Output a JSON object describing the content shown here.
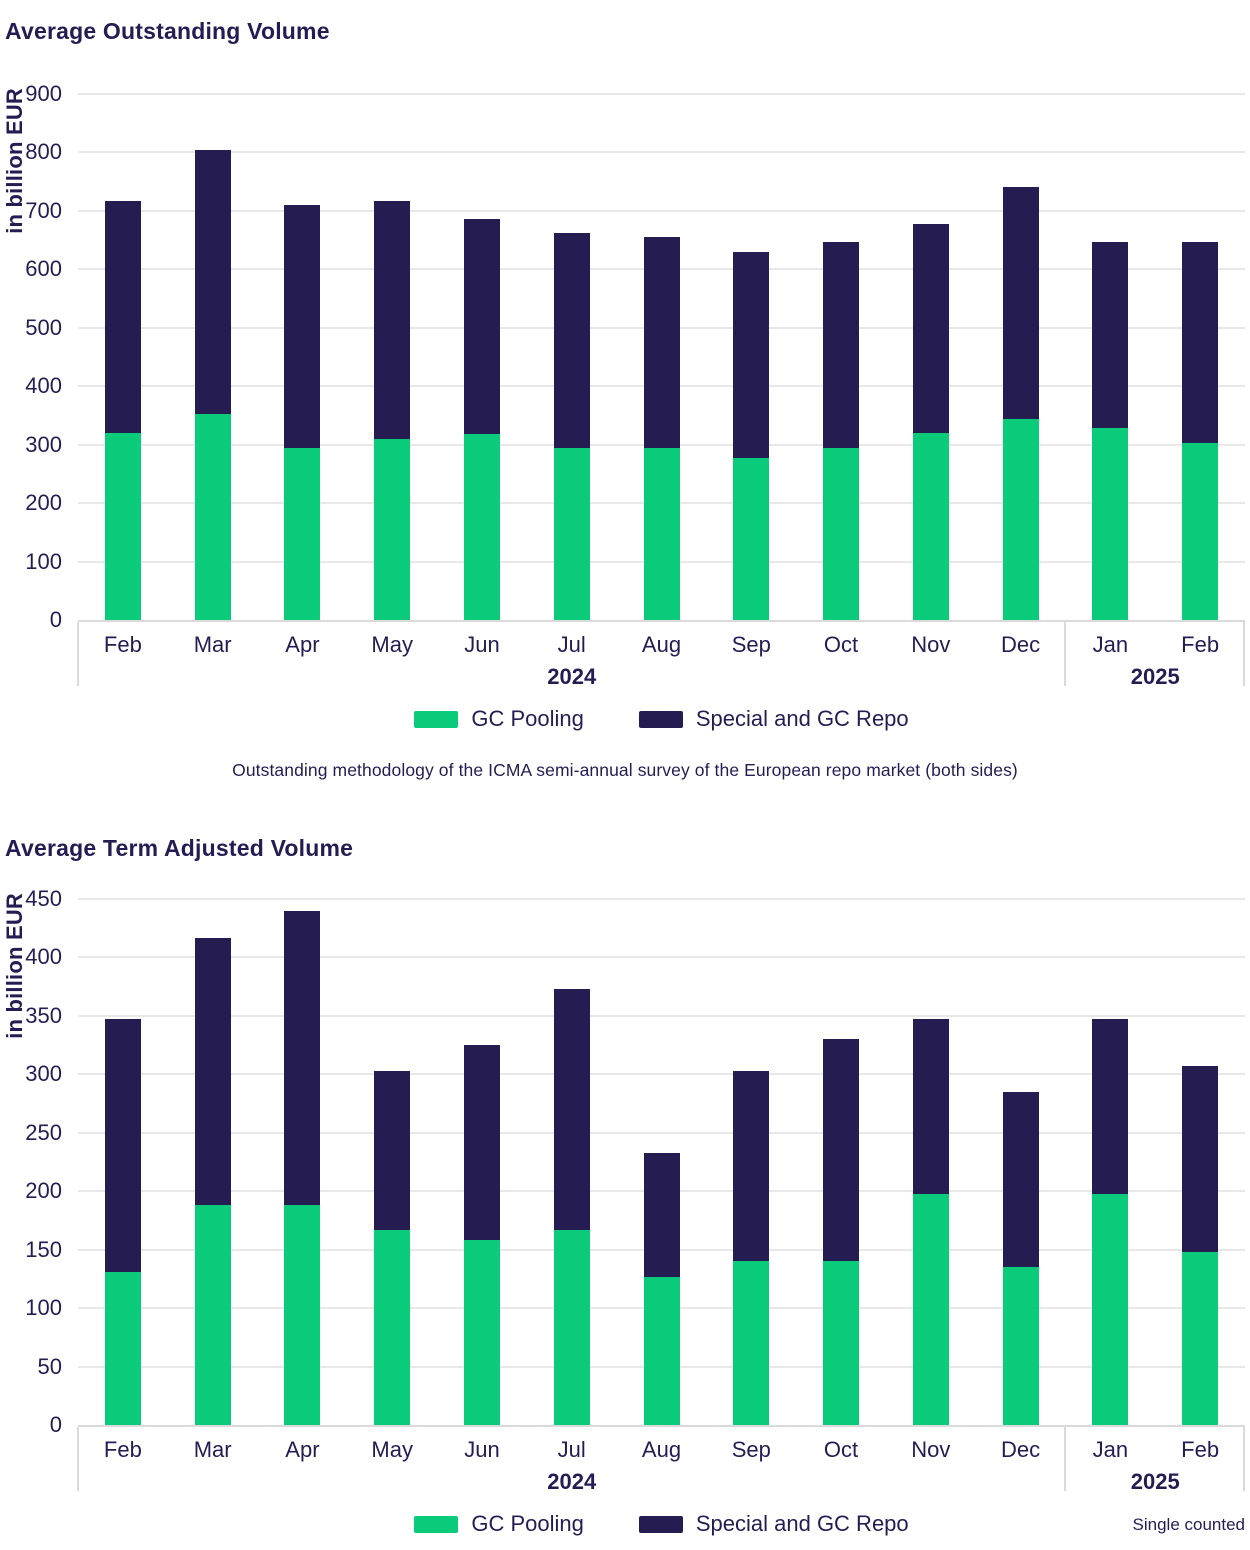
{
  "colors": {
    "gc_pooling_green": "#0acb7a",
    "special_repo_navy": "#251d52",
    "text_navy": "#241d53",
    "gridline_gray": "#e8e8e8",
    "axis_gray": "#dadada"
  },
  "chart_data": [
    {
      "type": "bar",
      "stacked": true,
      "title": "Average Outstanding Volume",
      "ylabel": "in billion EUR",
      "ylim": [
        0,
        900
      ],
      "ytick_step": 100,
      "grid": "horizontal",
      "legend_position": "bottom-center",
      "categories": [
        "Feb",
        "Mar",
        "Apr",
        "May",
        "Jun",
        "Jul",
        "Aug",
        "Sep",
        "Oct",
        "Nov",
        "Dec",
        "Jan",
        "Feb"
      ],
      "year_groups": [
        {
          "label": "2024",
          "from": 0,
          "to": 10
        },
        {
          "label": "2025",
          "from": 11,
          "to": 12
        }
      ],
      "series": [
        {
          "name": "GC Pooling",
          "color": "#0acb7a",
          "values": [
            320,
            352,
            295,
            310,
            318,
            295,
            295,
            278,
            295,
            320,
            344,
            328,
            303
          ]
        },
        {
          "name": "Special and GC Repo",
          "color": "#251d52",
          "values": [
            397,
            453,
            415,
            407,
            368,
            368,
            360,
            352,
            352,
            358,
            397,
            319,
            344
          ]
        }
      ],
      "totals": [
        717,
        805,
        710,
        717,
        686,
        663,
        655,
        630,
        647,
        678,
        741,
        647,
        647
      ],
      "caption": "Outstanding methodology of the ICMA semi-annual survey of the European repo market (both sides)"
    },
    {
      "type": "bar",
      "stacked": true,
      "title": "Average Term Adjusted Volume",
      "ylabel": "in billion EUR",
      "ylim": [
        0,
        450
      ],
      "ytick_step": 50,
      "grid": "horizontal",
      "legend_position": "bottom-center",
      "categories": [
        "Feb",
        "Mar",
        "Apr",
        "May",
        "Jun",
        "Jul",
        "Aug",
        "Sep",
        "Oct",
        "Nov",
        "Dec",
        "Jan",
        "Feb"
      ],
      "year_groups": [
        {
          "label": "2024",
          "from": 0,
          "to": 10
        },
        {
          "label": "2025",
          "from": 11,
          "to": 12
        }
      ],
      "series": [
        {
          "name": "GC Pooling",
          "color": "#0acb7a",
          "values": [
            131,
            188,
            188,
            167,
            158,
            167,
            127,
            140,
            140,
            198,
            135,
            198,
            148
          ]
        },
        {
          "name": "Special and GC Repo",
          "color": "#251d52",
          "values": [
            216,
            229,
            252,
            136,
            167,
            206,
            106,
            163,
            190,
            149,
            150,
            149,
            159
          ]
        }
      ],
      "totals": [
        347,
        417,
        440,
        303,
        325,
        373,
        233,
        303,
        330,
        347,
        285,
        347,
        307
      ],
      "note": "Single counted"
    }
  ]
}
